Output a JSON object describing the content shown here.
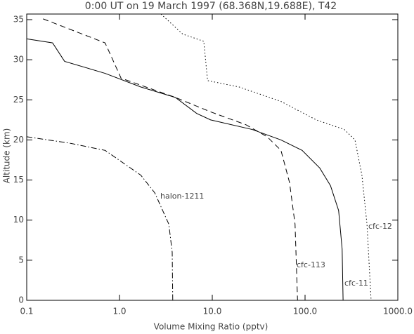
{
  "chart_data": {
    "type": "line",
    "title": "0:00 UT on 19 March 1997 (68.368N,19.688E), T42",
    "x_label": "Volume Mixing Ratio (pptv)",
    "y_label": "Altitude (km)",
    "xscale": "log",
    "xlim": [
      0.1,
      1000
    ],
    "xticks": [
      0.1,
      {
        "value": 1,
        "label": "1.0"
      },
      {
        "value": 10,
        "label": "10.0"
      },
      {
        "value": 100,
        "label": "100.0"
      },
      {
        "value": 1000,
        "label": "1000.0"
      }
    ],
    "ylim": [
      0,
      35.7
    ],
    "yticks": [
      0,
      5,
      10,
      15,
      20,
      25,
      30,
      35
    ],
    "series": [
      {
        "name": "cfc-11",
        "color": "#000000",
        "dash": "solid",
        "x": [
          0.1,
          0.19,
          0.256,
          0.7,
          1.7,
          4.0,
          6.8,
          9.6,
          27,
          55,
          93,
          144,
          188,
          230,
          251,
          257
        ],
        "values": [
          32.6,
          32.1,
          29.8,
          28.3,
          26.6,
          25.3,
          23.3,
          22.5,
          21.3,
          20,
          18.7,
          16.5,
          14.3,
          11.2,
          6.4,
          0
        ]
      },
      {
        "name": "cfc-113",
        "color": "#000000",
        "dash": "dashed",
        "x": [
          0.15,
          0.7,
          1.04,
          4.0,
          9.6,
          23,
          39,
          55,
          68,
          78,
          83
        ],
        "values": [
          35.1,
          32.1,
          27.7,
          25.3,
          23.5,
          21.9,
          20.4,
          18.7,
          14.7,
          9.5,
          0
        ]
      },
      {
        "name": "cfc-12",
        "color": "#000000",
        "dash": "dotted",
        "x": [
          2.8,
          4.8,
          8.1,
          8.9,
          19.5,
          55,
          132,
          265,
          345,
          410,
          465,
          515
        ],
        "values": [
          35.7,
          33.2,
          32.3,
          27.4,
          26.6,
          24.8,
          22.5,
          21.3,
          20,
          15.6,
          9.5,
          0
        ]
      },
      {
        "name": "halon-1211",
        "color": "#000000",
        "dash": "dashdot",
        "x": [
          0.1,
          0.29,
          0.7,
          1.7,
          2.4,
          3.4,
          3.7,
          3.75
        ],
        "values": [
          20.4,
          19.6,
          18.7,
          15.6,
          13.4,
          9.5,
          6.0,
          0
        ]
      }
    ]
  }
}
